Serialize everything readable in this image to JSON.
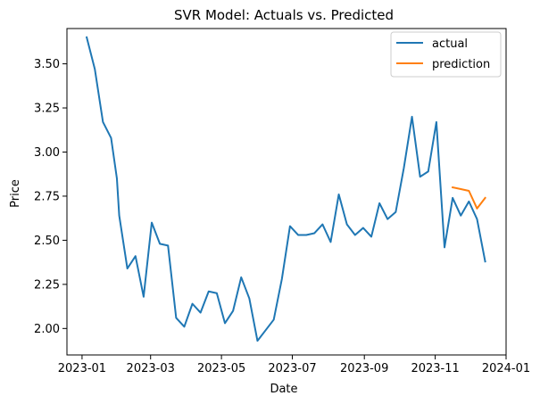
{
  "chart_data": {
    "type": "line",
    "title": "SVR Model: Actuals vs. Predicted",
    "xlabel": "Date",
    "ylabel": "Price",
    "xlim": [
      "2022-12-19",
      "2024-01-01"
    ],
    "ylim": [
      1.85,
      3.7
    ],
    "x_ticks": [
      "2023-01",
      "2023-03",
      "2023-05",
      "2023-07",
      "2023-09",
      "2023-11",
      "2024-01"
    ],
    "y_ticks": [
      "2.00",
      "2.25",
      "2.50",
      "2.75",
      "3.00",
      "3.25",
      "3.50"
    ],
    "y_tick_values": [
      2.0,
      2.25,
      2.5,
      2.75,
      3.0,
      3.25,
      3.5
    ],
    "grid": false,
    "legend": "top-right",
    "series": [
      {
        "name": "actual",
        "color": "#1f77b4",
        "x": [
          "2023-01-05",
          "2023-01-12",
          "2023-01-19",
          "2023-01-26",
          "2023-01-31",
          "2023-02-02",
          "2023-02-09",
          "2023-02-16",
          "2023-02-23",
          "2023-03-02",
          "2023-03-09",
          "2023-03-16",
          "2023-03-23",
          "2023-03-30",
          "2023-04-06",
          "2023-04-13",
          "2023-04-20",
          "2023-04-27",
          "2023-05-04",
          "2023-05-11",
          "2023-05-18",
          "2023-05-25",
          "2023-06-01",
          "2023-06-08",
          "2023-06-15",
          "2023-06-22",
          "2023-06-29",
          "2023-07-06",
          "2023-07-13",
          "2023-07-20",
          "2023-07-27",
          "2023-08-03",
          "2023-08-10",
          "2023-08-17",
          "2023-08-24",
          "2023-08-31",
          "2023-09-07",
          "2023-09-14",
          "2023-09-21",
          "2023-09-28",
          "2023-10-05",
          "2023-10-12",
          "2023-10-19",
          "2023-10-26",
          "2023-11-02",
          "2023-11-09",
          "2023-11-16",
          "2023-11-23",
          "2023-11-30",
          "2023-12-07",
          "2023-12-14"
        ],
        "values": [
          3.65,
          3.47,
          3.17,
          3.08,
          2.85,
          2.64,
          2.34,
          2.41,
          2.18,
          2.6,
          2.48,
          2.47,
          2.06,
          2.01,
          2.14,
          2.09,
          2.21,
          2.2,
          2.03,
          2.1,
          2.29,
          2.17,
          1.93,
          1.99,
          2.05,
          2.28,
          2.58,
          2.53,
          2.53,
          2.54,
          2.59,
          2.49,
          2.76,
          2.59,
          2.53,
          2.57,
          2.52,
          2.71,
          2.62,
          2.66,
          2.91,
          3.2,
          2.86,
          2.89,
          3.17,
          2.46,
          2.74,
          2.64,
          2.72,
          2.62,
          2.38
        ]
      },
      {
        "name": "prediction",
        "color": "#ff7f0e",
        "x": [
          "2023-11-16",
          "2023-11-23",
          "2023-11-30",
          "2023-12-07",
          "2023-12-14"
        ],
        "values": [
          2.8,
          2.79,
          2.78,
          2.68,
          2.74
        ]
      }
    ]
  }
}
